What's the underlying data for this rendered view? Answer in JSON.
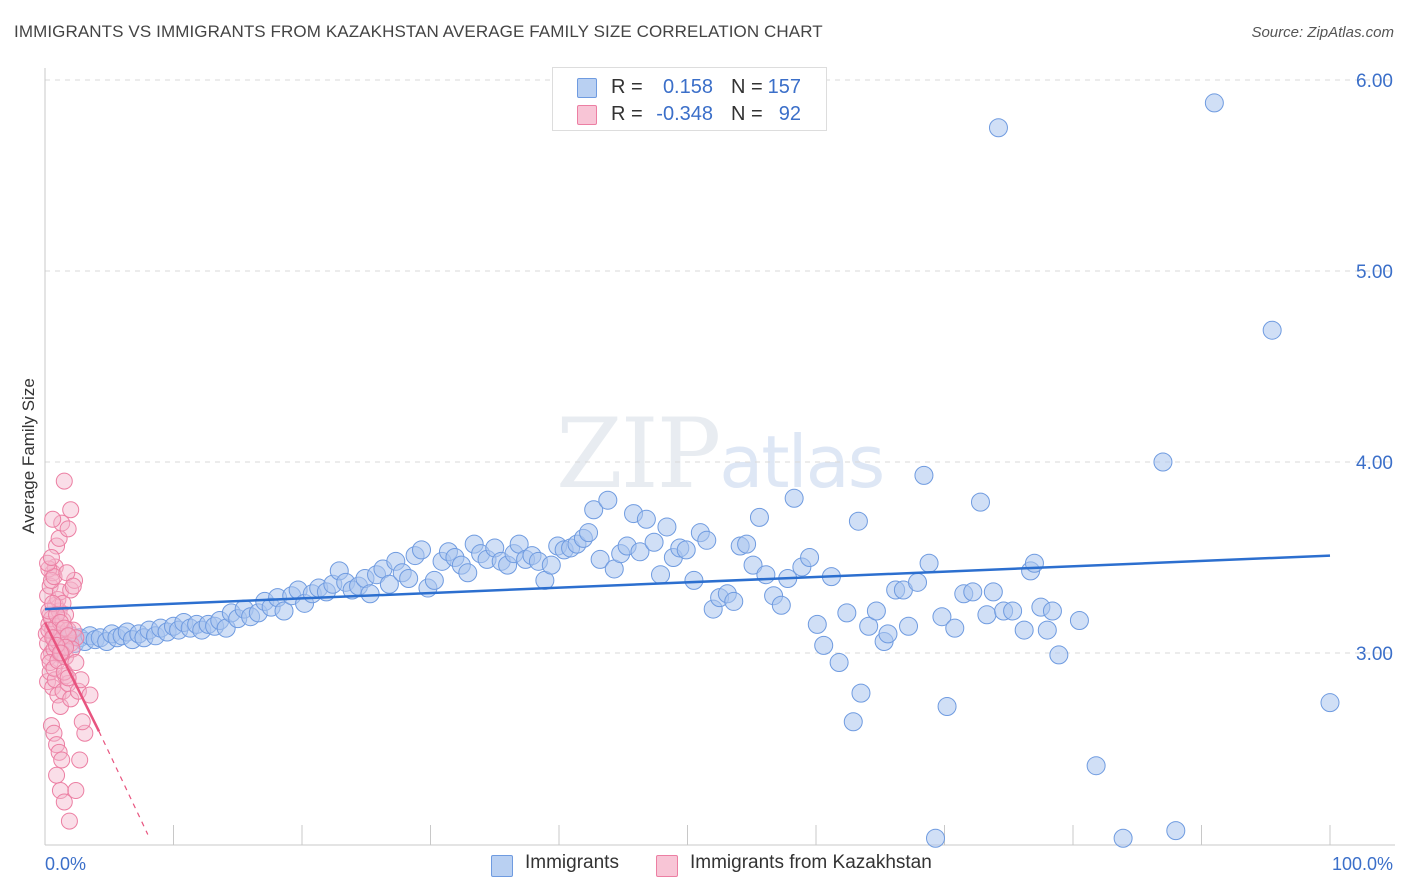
{
  "title": "IMMIGRANTS VS IMMIGRANTS FROM KAZAKHSTAN AVERAGE FAMILY SIZE CORRELATION CHART",
  "source": "Source: ZipAtlas.com",
  "watermark": {
    "zip": "ZIP",
    "atlas": "atlas"
  },
  "legend": {
    "rows": [
      {
        "r_label": "R =",
        "r_value": "0.158",
        "n_label": "N =",
        "n_value": "157"
      },
      {
        "r_label": "R =",
        "r_value": "-0.348",
        "n_label": "N =",
        "n_value": "92"
      }
    ]
  },
  "colors": {
    "blue_fill": "#a9c4ee",
    "blue_stroke": "#6f9be0",
    "blue_line": "#2c6fcf",
    "pink_fill": "#f5b6cb",
    "pink_stroke": "#ec7fa3",
    "pink_line": "#e8547f",
    "grid": "#d9d9d9",
    "axis_text": "#3b6fc9"
  },
  "chart_data": {
    "type": "scatter",
    "title": "IMMIGRANTS VS IMMIGRANTS FROM KAZAKHSTAN AVERAGE FAMILY SIZE CORRELATION CHART",
    "xlabel": "",
    "ylabel": "Average Family Size",
    "xlim": [
      0,
      100
    ],
    "ylim": [
      2.05,
      6.1
    ],
    "x_tick_labels": [
      "0.0%",
      "100.0%"
    ],
    "y_ticks": [
      3.0,
      4.0,
      5.0,
      6.0
    ],
    "y_tick_labels": [
      "3.00",
      "4.00",
      "5.00",
      "6.00"
    ],
    "grid": true,
    "legend_position": "top-center",
    "series": [
      {
        "name": "Immigrants",
        "color": "#a9c4ee",
        "R": 0.158,
        "N": 157,
        "trend": {
          "x": [
            0,
            100
          ],
          "y": [
            3.23,
            3.51
          ],
          "style": "solid"
        },
        "points": [
          [
            1.5,
            3.07
          ],
          [
            2.0,
            3.09
          ],
          [
            2.3,
            3.05
          ],
          [
            2.7,
            3.08
          ],
          [
            3.1,
            3.06
          ],
          [
            3.5,
            3.09
          ],
          [
            3.9,
            3.07
          ],
          [
            4.3,
            3.08
          ],
          [
            4.8,
            3.06
          ],
          [
            5.2,
            3.1
          ],
          [
            5.6,
            3.08
          ],
          [
            6.0,
            3.09
          ],
          [
            6.4,
            3.11
          ],
          [
            6.8,
            3.07
          ],
          [
            7.3,
            3.1
          ],
          [
            7.7,
            3.08
          ],
          [
            8.1,
            3.12
          ],
          [
            8.6,
            3.09
          ],
          [
            9.0,
            3.13
          ],
          [
            9.5,
            3.11
          ],
          [
            10.0,
            3.14
          ],
          [
            10.4,
            3.12
          ],
          [
            10.8,
            3.16
          ],
          [
            11.3,
            3.13
          ],
          [
            11.8,
            3.15
          ],
          [
            12.2,
            3.12
          ],
          [
            12.7,
            3.15
          ],
          [
            13.2,
            3.14
          ],
          [
            13.6,
            3.17
          ],
          [
            14.1,
            3.13
          ],
          [
            14.5,
            3.21
          ],
          [
            15.0,
            3.18
          ],
          [
            15.5,
            3.23
          ],
          [
            16.0,
            3.19
          ],
          [
            16.6,
            3.21
          ],
          [
            17.1,
            3.27
          ],
          [
            17.6,
            3.24
          ],
          [
            18.1,
            3.29
          ],
          [
            18.6,
            3.22
          ],
          [
            19.2,
            3.3
          ],
          [
            19.7,
            3.33
          ],
          [
            20.2,
            3.26
          ],
          [
            20.8,
            3.31
          ],
          [
            21.3,
            3.34
          ],
          [
            21.9,
            3.32
          ],
          [
            22.4,
            3.36
          ],
          [
            22.9,
            3.43
          ],
          [
            23.4,
            3.37
          ],
          [
            23.9,
            3.33
          ],
          [
            24.4,
            3.35
          ],
          [
            24.9,
            3.39
          ],
          [
            25.3,
            3.31
          ],
          [
            25.8,
            3.41
          ],
          [
            26.3,
            3.44
          ],
          [
            26.8,
            3.36
          ],
          [
            27.3,
            3.48
          ],
          [
            27.8,
            3.42
          ],
          [
            28.3,
            3.39
          ],
          [
            28.8,
            3.51
          ],
          [
            29.3,
            3.54
          ],
          [
            29.8,
            3.34
          ],
          [
            30.3,
            3.38
          ],
          [
            30.9,
            3.48
          ],
          [
            31.4,
            3.53
          ],
          [
            31.9,
            3.5
          ],
          [
            32.4,
            3.46
          ],
          [
            32.9,
            3.42
          ],
          [
            33.4,
            3.57
          ],
          [
            33.9,
            3.52
          ],
          [
            34.4,
            3.49
          ],
          [
            35.0,
            3.55
          ],
          [
            35.5,
            3.48
          ],
          [
            36.0,
            3.46
          ],
          [
            36.5,
            3.52
          ],
          [
            36.9,
            3.57
          ],
          [
            37.4,
            3.49
          ],
          [
            37.9,
            3.51
          ],
          [
            38.4,
            3.48
          ],
          [
            38.9,
            3.38
          ],
          [
            39.4,
            3.46
          ],
          [
            39.9,
            3.56
          ],
          [
            40.4,
            3.54
          ],
          [
            40.9,
            3.55
          ],
          [
            41.4,
            3.57
          ],
          [
            41.9,
            3.6
          ],
          [
            42.3,
            3.63
          ],
          [
            42.7,
            3.75
          ],
          [
            43.2,
            3.49
          ],
          [
            43.8,
            3.8
          ],
          [
            44.3,
            3.44
          ],
          [
            44.8,
            3.52
          ],
          [
            45.3,
            3.56
          ],
          [
            45.8,
            3.73
          ],
          [
            46.3,
            3.53
          ],
          [
            46.8,
            3.7
          ],
          [
            47.4,
            3.58
          ],
          [
            47.9,
            3.41
          ],
          [
            48.4,
            3.66
          ],
          [
            48.9,
            3.5
          ],
          [
            49.4,
            3.55
          ],
          [
            49.9,
            3.54
          ],
          [
            50.5,
            3.38
          ],
          [
            51.0,
            3.63
          ],
          [
            51.5,
            3.59
          ],
          [
            52.0,
            3.23
          ],
          [
            52.5,
            3.29
          ],
          [
            53.1,
            3.31
          ],
          [
            53.6,
            3.27
          ],
          [
            54.1,
            3.56
          ],
          [
            54.6,
            3.57
          ],
          [
            55.1,
            3.46
          ],
          [
            55.6,
            3.71
          ],
          [
            56.1,
            3.41
          ],
          [
            56.7,
            3.3
          ],
          [
            57.3,
            3.25
          ],
          [
            57.8,
            3.39
          ],
          [
            58.3,
            3.81
          ],
          [
            58.9,
            3.45
          ],
          [
            59.5,
            3.5
          ],
          [
            60.1,
            3.15
          ],
          [
            60.6,
            3.04
          ],
          [
            61.2,
            3.4
          ],
          [
            61.8,
            2.95
          ],
          [
            62.4,
            3.21
          ],
          [
            62.9,
            2.64
          ],
          [
            63.3,
            3.69
          ],
          [
            63.5,
            2.79
          ],
          [
            64.1,
            3.14
          ],
          [
            64.7,
            3.22
          ],
          [
            65.3,
            3.06
          ],
          [
            65.6,
            3.1
          ],
          [
            66.2,
            3.33
          ],
          [
            66.8,
            3.33
          ],
          [
            67.2,
            3.14
          ],
          [
            67.9,
            3.37
          ],
          [
            68.4,
            3.93
          ],
          [
            68.8,
            3.47
          ],
          [
            69.3,
            2.03
          ],
          [
            69.8,
            3.19
          ],
          [
            70.2,
            2.72
          ],
          [
            70.8,
            3.13
          ],
          [
            71.5,
            3.31
          ],
          [
            72.2,
            3.32
          ],
          [
            72.8,
            3.79
          ],
          [
            73.3,
            3.2
          ],
          [
            73.8,
            3.32
          ],
          [
            74.2,
            5.75
          ],
          [
            74.6,
            3.22
          ],
          [
            75.3,
            3.22
          ],
          [
            76.2,
            3.12
          ],
          [
            76.7,
            3.43
          ],
          [
            77.0,
            3.47
          ],
          [
            77.5,
            3.24
          ],
          [
            78.0,
            3.12
          ],
          [
            78.4,
            3.22
          ],
          [
            78.9,
            2.99
          ],
          [
            80.5,
            3.17
          ],
          [
            81.8,
            2.41
          ],
          [
            83.9,
            2.03
          ],
          [
            87.0,
            4.0
          ],
          [
            88.0,
            2.07
          ],
          [
            91.0,
            5.88
          ],
          [
            95.5,
            4.69
          ],
          [
            100.0,
            2.74
          ]
        ]
      },
      {
        "name": "Immigrants from Kazakhstan",
        "color": "#f5b6cb",
        "R": -0.348,
        "N": 92,
        "trend": {
          "x": [
            0,
            4.2,
            8.0
          ],
          "y": [
            3.16,
            2.59,
            2.05
          ],
          "style": "solid-then-dashed"
        },
        "points": [
          [
            0.1,
            3.1
          ],
          [
            0.2,
            3.05
          ],
          [
            0.3,
            3.15
          ],
          [
            0.4,
            3.2
          ],
          [
            0.5,
            3.0
          ],
          [
            0.6,
            3.12
          ],
          [
            0.7,
            3.08
          ],
          [
            0.8,
            3.25
          ],
          [
            0.2,
            3.3
          ],
          [
            0.3,
            2.98
          ],
          [
            0.5,
            3.18
          ],
          [
            0.7,
            3.02
          ],
          [
            0.9,
            3.14
          ],
          [
            1.0,
            3.06
          ],
          [
            1.1,
            3.22
          ],
          [
            1.2,
            2.99
          ],
          [
            1.3,
            3.1
          ],
          [
            1.4,
            3.17
          ],
          [
            1.5,
            3.04
          ],
          [
            0.4,
            3.35
          ],
          [
            0.6,
            3.42
          ],
          [
            0.8,
            3.45
          ],
          [
            1.0,
            3.28
          ],
          [
            1.2,
            3.32
          ],
          [
            1.4,
            3.26
          ],
          [
            1.6,
            3.2
          ],
          [
            1.8,
            3.12
          ],
          [
            0.3,
            3.44
          ],
          [
            0.5,
            3.38
          ],
          [
            0.7,
            3.4
          ],
          [
            0.2,
            2.85
          ],
          [
            0.4,
            2.9
          ],
          [
            0.6,
            2.82
          ],
          [
            0.8,
            2.86
          ],
          [
            1.0,
            2.78
          ],
          [
            1.2,
            2.72
          ],
          [
            1.4,
            2.8
          ],
          [
            1.6,
            2.88
          ],
          [
            1.8,
            2.84
          ],
          [
            2.0,
            2.76
          ],
          [
            0.5,
            2.62
          ],
          [
            0.7,
            2.58
          ],
          [
            0.9,
            2.52
          ],
          [
            1.1,
            2.48
          ],
          [
            1.3,
            2.44
          ],
          [
            0.9,
            3.56
          ],
          [
            1.1,
            3.6
          ],
          [
            1.3,
            3.68
          ],
          [
            1.5,
            3.9
          ],
          [
            2.0,
            3.75
          ],
          [
            1.8,
            3.65
          ],
          [
            0.6,
            3.7
          ],
          [
            0.9,
            2.36
          ],
          [
            1.2,
            2.28
          ],
          [
            1.5,
            2.22
          ],
          [
            1.9,
            2.12
          ],
          [
            2.4,
            2.28
          ],
          [
            2.7,
            2.44
          ],
          [
            3.1,
            2.58
          ],
          [
            1.6,
            2.98
          ],
          [
            2.0,
            3.05
          ],
          [
            2.2,
            3.12
          ],
          [
            2.4,
            3.08
          ],
          [
            0.3,
            3.22
          ],
          [
            0.6,
            3.26
          ],
          [
            0.9,
            3.2
          ],
          [
            1.2,
            3.16
          ],
          [
            1.5,
            3.13
          ],
          [
            1.8,
            3.09
          ],
          [
            2.1,
            3.02
          ],
          [
            0.4,
            2.95
          ],
          [
            0.7,
            2.92
          ],
          [
            1.0,
            2.96
          ],
          [
            1.3,
            3.0
          ],
          [
            1.6,
            3.03
          ],
          [
            2.0,
            3.33
          ],
          [
            2.3,
            3.38
          ],
          [
            2.6,
            2.8
          ],
          [
            3.5,
            2.78
          ],
          [
            2.8,
            2.86
          ],
          [
            0.2,
            3.47
          ],
          [
            0.5,
            3.5
          ],
          [
            1.7,
            3.42
          ],
          [
            2.2,
            3.35
          ],
          [
            0.3,
            3.12
          ],
          [
            0.6,
            3.08
          ],
          [
            0.9,
            3.04
          ],
          [
            1.2,
            3.0
          ],
          [
            1.5,
            2.9
          ],
          [
            1.8,
            2.87
          ],
          [
            2.4,
            2.95
          ],
          [
            2.9,
            2.64
          ]
        ]
      }
    ]
  },
  "bottom_legend": [
    "Immigrants",
    "Immigrants from Kazakhstan"
  ]
}
